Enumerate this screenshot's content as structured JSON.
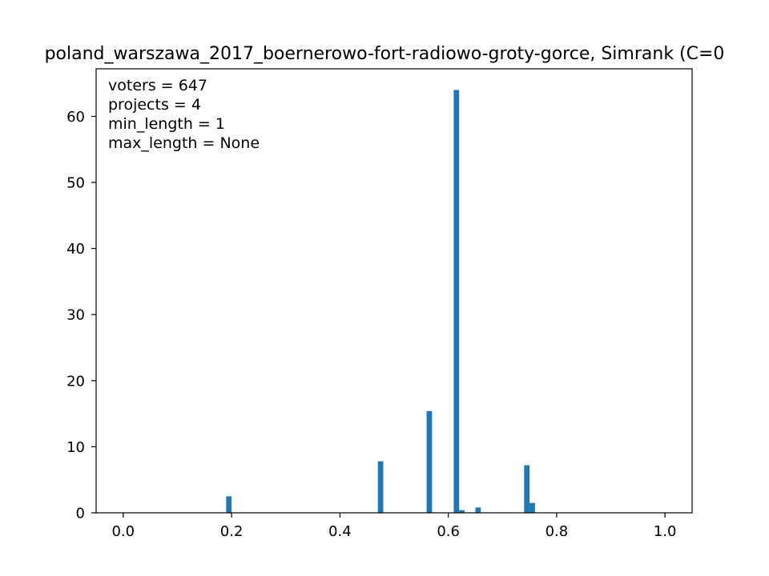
{
  "chart_data": {
    "type": "bar",
    "title": "poland_warszawa_2017_boernerowo-fort-radiowo-groty-gorce, Simrank (C=0",
    "xlabel": "",
    "ylabel": "",
    "xlim": [
      -0.05,
      1.05
    ],
    "ylim": [
      0,
      67.2
    ],
    "xticks": [
      "0.0",
      "0.2",
      "0.4",
      "0.6",
      "0.8",
      "1.0"
    ],
    "xtick_values": [
      0.0,
      0.2,
      0.4,
      0.6,
      0.8,
      1.0
    ],
    "yticks": [
      "0",
      "10",
      "20",
      "30",
      "40",
      "50",
      "60"
    ],
    "ytick_values": [
      0,
      10,
      20,
      30,
      40,
      50,
      60
    ],
    "bin_width": 0.01,
    "bar_color": "#1f77b4",
    "bins": [
      {
        "x": 0.19,
        "value": 2.5
      },
      {
        "x": 0.47,
        "value": 7.8
      },
      {
        "x": 0.56,
        "value": 15.4
      },
      {
        "x": 0.61,
        "value": 64.0
      },
      {
        "x": 0.62,
        "value": 0.4
      },
      {
        "x": 0.65,
        "value": 0.8
      },
      {
        "x": 0.74,
        "value": 7.2
      },
      {
        "x": 0.75,
        "value": 1.5
      }
    ],
    "annotations": [
      "voters = 647",
      "projects = 4",
      "min_length = 1",
      "max_length = None"
    ],
    "grid": false
  }
}
